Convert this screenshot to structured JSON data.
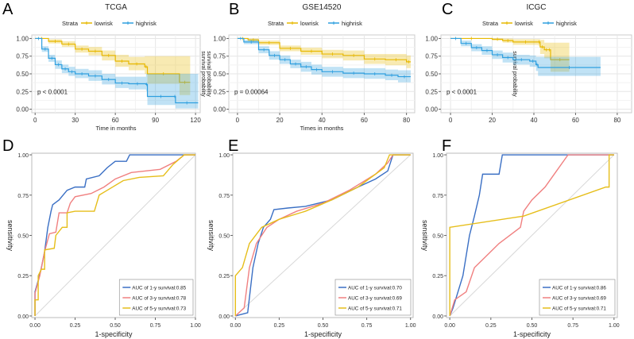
{
  "colors": {
    "lowrisk": "#E7B800",
    "highrisk": "#2E9FDF",
    "roc_1y": "#3A6FC4",
    "roc_3y": "#F08080",
    "roc_5y": "#E6BE1A",
    "diag": "#D8D8D8"
  },
  "chart_data": [
    {
      "panel": "A",
      "type": "line",
      "subtype": "kaplan-meier",
      "title": "TCGA",
      "legend_title": "Strata",
      "legend_position": "top",
      "xlabel": "Time in months",
      "ylabel": "survival probability",
      "annotation": "p < 0.0001",
      "xlim": [
        -2.5,
        123.5
      ],
      "ylim": [
        -0.05,
        1.05
      ],
      "xticks": [
        "0",
        "30",
        "60",
        "90",
        "120"
      ],
      "yticks": [
        "0.00",
        "0.25",
        "0.50",
        "0.75",
        "1.00"
      ],
      "grid": true,
      "series": [
        {
          "name": "lowrisk",
          "x": [
            0,
            10,
            20,
            30,
            40,
            50,
            60,
            70,
            82,
            84,
            108,
            116
          ],
          "y": [
            1,
            0.96,
            0.92,
            0.85,
            0.82,
            0.76,
            0.68,
            0.64,
            0.6,
            0.5,
            0.38,
            0.38
          ],
          "ci_lower": [
            1,
            0.93,
            0.88,
            0.8,
            0.76,
            0.69,
            0.6,
            0.55,
            0.5,
            0.36,
            0.2,
            0.2
          ],
          "ci_upper": [
            1,
            0.99,
            0.96,
            0.9,
            0.88,
            0.83,
            0.77,
            0.74,
            0.75,
            0.75,
            0.75,
            0.75
          ]
        },
        {
          "name": "highrisk",
          "x": [
            0,
            5,
            10,
            15,
            20,
            25,
            30,
            40,
            50,
            60,
            70,
            83,
            84,
            104,
            105,
            122
          ],
          "y": [
            1,
            0.85,
            0.72,
            0.63,
            0.57,
            0.53,
            0.5,
            0.47,
            0.42,
            0.37,
            0.36,
            0.35,
            0.18,
            0.18,
            0.09,
            0.09
          ],
          "ci_lower": [
            1,
            0.81,
            0.67,
            0.57,
            0.51,
            0.47,
            0.44,
            0.4,
            0.35,
            0.3,
            0.28,
            0.26,
            0.06,
            0.06,
            0.01,
            0.01
          ],
          "ci_upper": [
            1,
            0.89,
            0.77,
            0.69,
            0.63,
            0.6,
            0.57,
            0.55,
            0.5,
            0.46,
            0.46,
            0.5,
            0.5,
            0.5,
            0.5,
            0.5
          ]
        }
      ]
    },
    {
      "panel": "B",
      "type": "line",
      "subtype": "kaplan-meier",
      "title": "GSE14520",
      "legend_title": "Strata",
      "legend_position": "top",
      "xlabel": "Times in months",
      "ylabel": "survival probability",
      "annotation": "p = 0.00064",
      "xlim": [
        -4.1,
        83.9
      ],
      "ylim": [
        -0.05,
        1.05
      ],
      "xticks": [
        "0",
        "20",
        "40",
        "60",
        "80"
      ],
      "yticks": [
        "0.00",
        "0.25",
        "0.50",
        "0.75",
        "1.00"
      ],
      "grid": true,
      "series": [
        {
          "name": "lowrisk",
          "x": [
            0,
            5,
            10,
            20,
            30,
            40,
            50,
            60,
            70,
            80,
            82
          ],
          "y": [
            1,
            0.98,
            0.94,
            0.86,
            0.82,
            0.78,
            0.76,
            0.71,
            0.7,
            0.67,
            0.67
          ],
          "ci_lower": [
            1,
            0.96,
            0.91,
            0.82,
            0.77,
            0.72,
            0.69,
            0.64,
            0.62,
            0.58,
            0.58
          ],
          "ci_upper": [
            1,
            1,
            0.97,
            0.9,
            0.87,
            0.84,
            0.83,
            0.78,
            0.78,
            0.76,
            0.76
          ]
        },
        {
          "name": "highrisk",
          "x": [
            0,
            3,
            10,
            15,
            20,
            25,
            30,
            35,
            40,
            50,
            60,
            70,
            76,
            82
          ],
          "y": [
            1,
            0.95,
            0.84,
            0.76,
            0.7,
            0.64,
            0.6,
            0.56,
            0.53,
            0.51,
            0.5,
            0.48,
            0.46,
            0.46
          ],
          "ci_lower": [
            1,
            0.92,
            0.79,
            0.7,
            0.64,
            0.58,
            0.53,
            0.49,
            0.46,
            0.44,
            0.43,
            0.41,
            0.38,
            0.38
          ],
          "ci_upper": [
            1,
            0.98,
            0.89,
            0.82,
            0.76,
            0.7,
            0.67,
            0.63,
            0.6,
            0.58,
            0.58,
            0.56,
            0.55,
            0.55
          ]
        }
      ]
    },
    {
      "panel": "C",
      "type": "line",
      "subtype": "kaplan-meier",
      "title": "ICGC",
      "legend_title": "Strata",
      "legend_position": "top",
      "xlabel": "",
      "ylabel": "survival probability",
      "annotation": "p < 0.0001",
      "xlim": [
        -4.6,
        86.9
      ],
      "ylim": [
        -0.05,
        1.05
      ],
      "xticks": [
        "0",
        "20",
        "40",
        "60",
        "80"
      ],
      "yticks": [
        "0.00",
        "0.25",
        "0.50",
        "0.75",
        "1.00"
      ],
      "grid": true,
      "series": [
        {
          "name": "lowrisk",
          "x": [
            0,
            20,
            25,
            30,
            42,
            43,
            45,
            47,
            48,
            57
          ],
          "y": [
            1,
            0.99,
            0.97,
            0.95,
            0.95,
            0.88,
            0.84,
            0.84,
            0.7,
            0.7
          ],
          "ci_lower": [
            1,
            0.97,
            0.94,
            0.91,
            0.9,
            0.78,
            0.72,
            0.72,
            0.53,
            0.53
          ],
          "ci_upper": [
            1,
            1,
            1,
            0.99,
            0.99,
            0.98,
            0.94,
            0.94,
            0.94,
            0.94
          ]
        },
        {
          "name": "highrisk",
          "x": [
            0,
            5,
            10,
            15,
            20,
            25,
            30,
            38,
            41,
            42,
            72
          ],
          "y": [
            1,
            0.93,
            0.87,
            0.83,
            0.77,
            0.73,
            0.7,
            0.68,
            0.63,
            0.59,
            0.59
          ],
          "ci_lower": [
            1,
            0.89,
            0.82,
            0.77,
            0.71,
            0.66,
            0.63,
            0.6,
            0.54,
            0.47,
            0.47
          ],
          "ci_upper": [
            1,
            0.97,
            0.92,
            0.89,
            0.83,
            0.8,
            0.77,
            0.76,
            0.74,
            0.74,
            0.74
          ]
        }
      ]
    },
    {
      "panel": "D",
      "type": "line",
      "subtype": "roc",
      "xlabel": "1-specificity",
      "ylabel": "sensitivity",
      "legend_position": "bottom-right",
      "xlim": [
        -0.02,
        1.0
      ],
      "ylim": [
        -0.01,
        1.01
      ],
      "xticks": [
        "0.00",
        "0.25",
        "0.50",
        "0.75",
        "1.00"
      ],
      "yticks": [
        "0.00",
        "0.25",
        "0.50",
        "0.75",
        "1.00"
      ],
      "grid": false,
      "series": [
        {
          "name": "AUC of 1-y survival:0.85",
          "key": "roc_1y",
          "x": [
            0,
            0,
            0.02,
            0.04,
            0.06,
            0.08,
            0.1,
            0.11,
            0.15,
            0.2,
            0.25,
            0.31,
            0.32,
            0.4,
            0.45,
            0.5,
            0.57,
            0.59,
            1
          ],
          "y": [
            0,
            0.15,
            0.22,
            0.3,
            0.4,
            0.55,
            0.65,
            0.69,
            0.72,
            0.78,
            0.8,
            0.8,
            0.85,
            0.87,
            0.92,
            0.96,
            0.96,
            1,
            1
          ]
        },
        {
          "name": "AUC of 3-y survival:0.78",
          "key": "roc_3y",
          "x": [
            0,
            0,
            0.03,
            0.06,
            0.09,
            0.13,
            0.15,
            0.2,
            0.22,
            0.25,
            0.35,
            0.43,
            0.5,
            0.6,
            0.78,
            0.88,
            0.93,
            1
          ],
          "y": [
            0,
            0.14,
            0.25,
            0.4,
            0.51,
            0.52,
            0.64,
            0.64,
            0.7,
            0.74,
            0.76,
            0.8,
            0.85,
            0.89,
            0.91,
            0.96,
            1,
            1
          ]
        },
        {
          "name": "AUC of 5-y survival:0.73",
          "key": "roc_5y",
          "x": [
            0,
            0,
            0.02,
            0.02,
            0.04,
            0.06,
            0.06,
            0.12,
            0.13,
            0.17,
            0.2,
            0.2,
            0.25,
            0.37,
            0.4,
            0.45,
            0.55,
            0.65,
            0.8,
            0.86,
            0.93,
            1
          ],
          "y": [
            0,
            0.1,
            0.1,
            0.25,
            0.29,
            0.29,
            0.41,
            0.42,
            0.5,
            0.55,
            0.55,
            0.64,
            0.65,
            0.65,
            0.75,
            0.78,
            0.84,
            0.86,
            0.87,
            0.94,
            1,
            1
          ]
        }
      ]
    },
    {
      "panel": "E",
      "type": "line",
      "subtype": "roc",
      "xlabel": "1-specificity",
      "ylabel": "sensitivity",
      "legend_position": "bottom-right",
      "xlim": [
        -0.015,
        1.015
      ],
      "ylim": [
        -0.01,
        1.01
      ],
      "xticks": [
        "0.00",
        "0.25",
        "0.50",
        "0.75",
        "1.00"
      ],
      "yticks": [
        "0.00",
        "0.25",
        "0.50",
        "0.75",
        "1.00"
      ],
      "grid": false,
      "series": [
        {
          "name": "AUC of 1-y survival:0.70",
          "key": "roc_1y",
          "x": [
            0,
            0.07,
            0.1,
            0.13,
            0.16,
            0.2,
            0.22,
            0.3,
            0.4,
            0.55,
            0.7,
            0.8,
            0.87,
            0.9,
            1
          ],
          "y": [
            0,
            0.02,
            0.3,
            0.45,
            0.55,
            0.6,
            0.66,
            0.67,
            0.68,
            0.72,
            0.8,
            0.85,
            0.9,
            1,
            1
          ]
        },
        {
          "name": "AUC of 3-y survival:0.69",
          "key": "roc_3y",
          "x": [
            0,
            0.05,
            0.08,
            0.12,
            0.18,
            0.25,
            0.35,
            0.5,
            0.65,
            0.8,
            0.87,
            0.9,
            1
          ],
          "y": [
            0,
            0.05,
            0.3,
            0.45,
            0.55,
            0.6,
            0.65,
            0.7,
            0.78,
            0.88,
            0.95,
            1,
            1
          ]
        },
        {
          "name": "AUC of 5-y survival:0.71",
          "key": "roc_5y",
          "x": [
            0,
            0,
            0.04,
            0.08,
            0.15,
            0.25,
            0.4,
            0.55,
            0.7,
            0.85,
            0.88,
            1
          ],
          "y": [
            0,
            0.25,
            0.3,
            0.45,
            0.55,
            0.6,
            0.65,
            0.72,
            0.8,
            0.92,
            1,
            1
          ]
        }
      ]
    },
    {
      "panel": "F",
      "type": "line",
      "subtype": "roc",
      "xlabel": "1-specificity",
      "ylabel": "sensitivity",
      "legend_position": "bottom-right",
      "xlim": [
        -0.02,
        1.02
      ],
      "ylim": [
        -0.01,
        1.01
      ],
      "xticks": [
        "0.00",
        "0.25",
        "0.50",
        "0.75",
        "1.00"
      ],
      "yticks": [
        "0.00",
        "0.25",
        "0.50",
        "0.75",
        "1.00"
      ],
      "grid": false,
      "series": [
        {
          "name": "AUC of 1-y survival:0.86",
          "key": "roc_1y",
          "x": [
            0,
            0.02,
            0.08,
            0.12,
            0.15,
            0.18,
            0.2,
            0.3,
            0.32,
            1
          ],
          "y": [
            0,
            0.05,
            0.25,
            0.5,
            0.62,
            0.75,
            0.88,
            0.88,
            1,
            1
          ]
        },
        {
          "name": "AUC of 3-y survival:0.69",
          "key": "roc_3y",
          "x": [
            0,
            0.03,
            0.1,
            0.15,
            0.2,
            0.3,
            0.43,
            0.45,
            0.5,
            0.58,
            0.65,
            0.72,
            1
          ],
          "y": [
            0,
            0.1,
            0.15,
            0.3,
            0.35,
            0.45,
            0.55,
            0.65,
            0.72,
            0.8,
            0.9,
            1,
            1
          ]
        },
        {
          "name": "AUC of 5-y survival:0.71",
          "key": "roc_5y",
          "x": [
            0,
            0,
            0.45,
            0.95,
            0.97,
            0.97,
            1
          ],
          "y": [
            0,
            0.55,
            0.62,
            0.8,
            0.8,
            1,
            1
          ]
        }
      ]
    }
  ]
}
